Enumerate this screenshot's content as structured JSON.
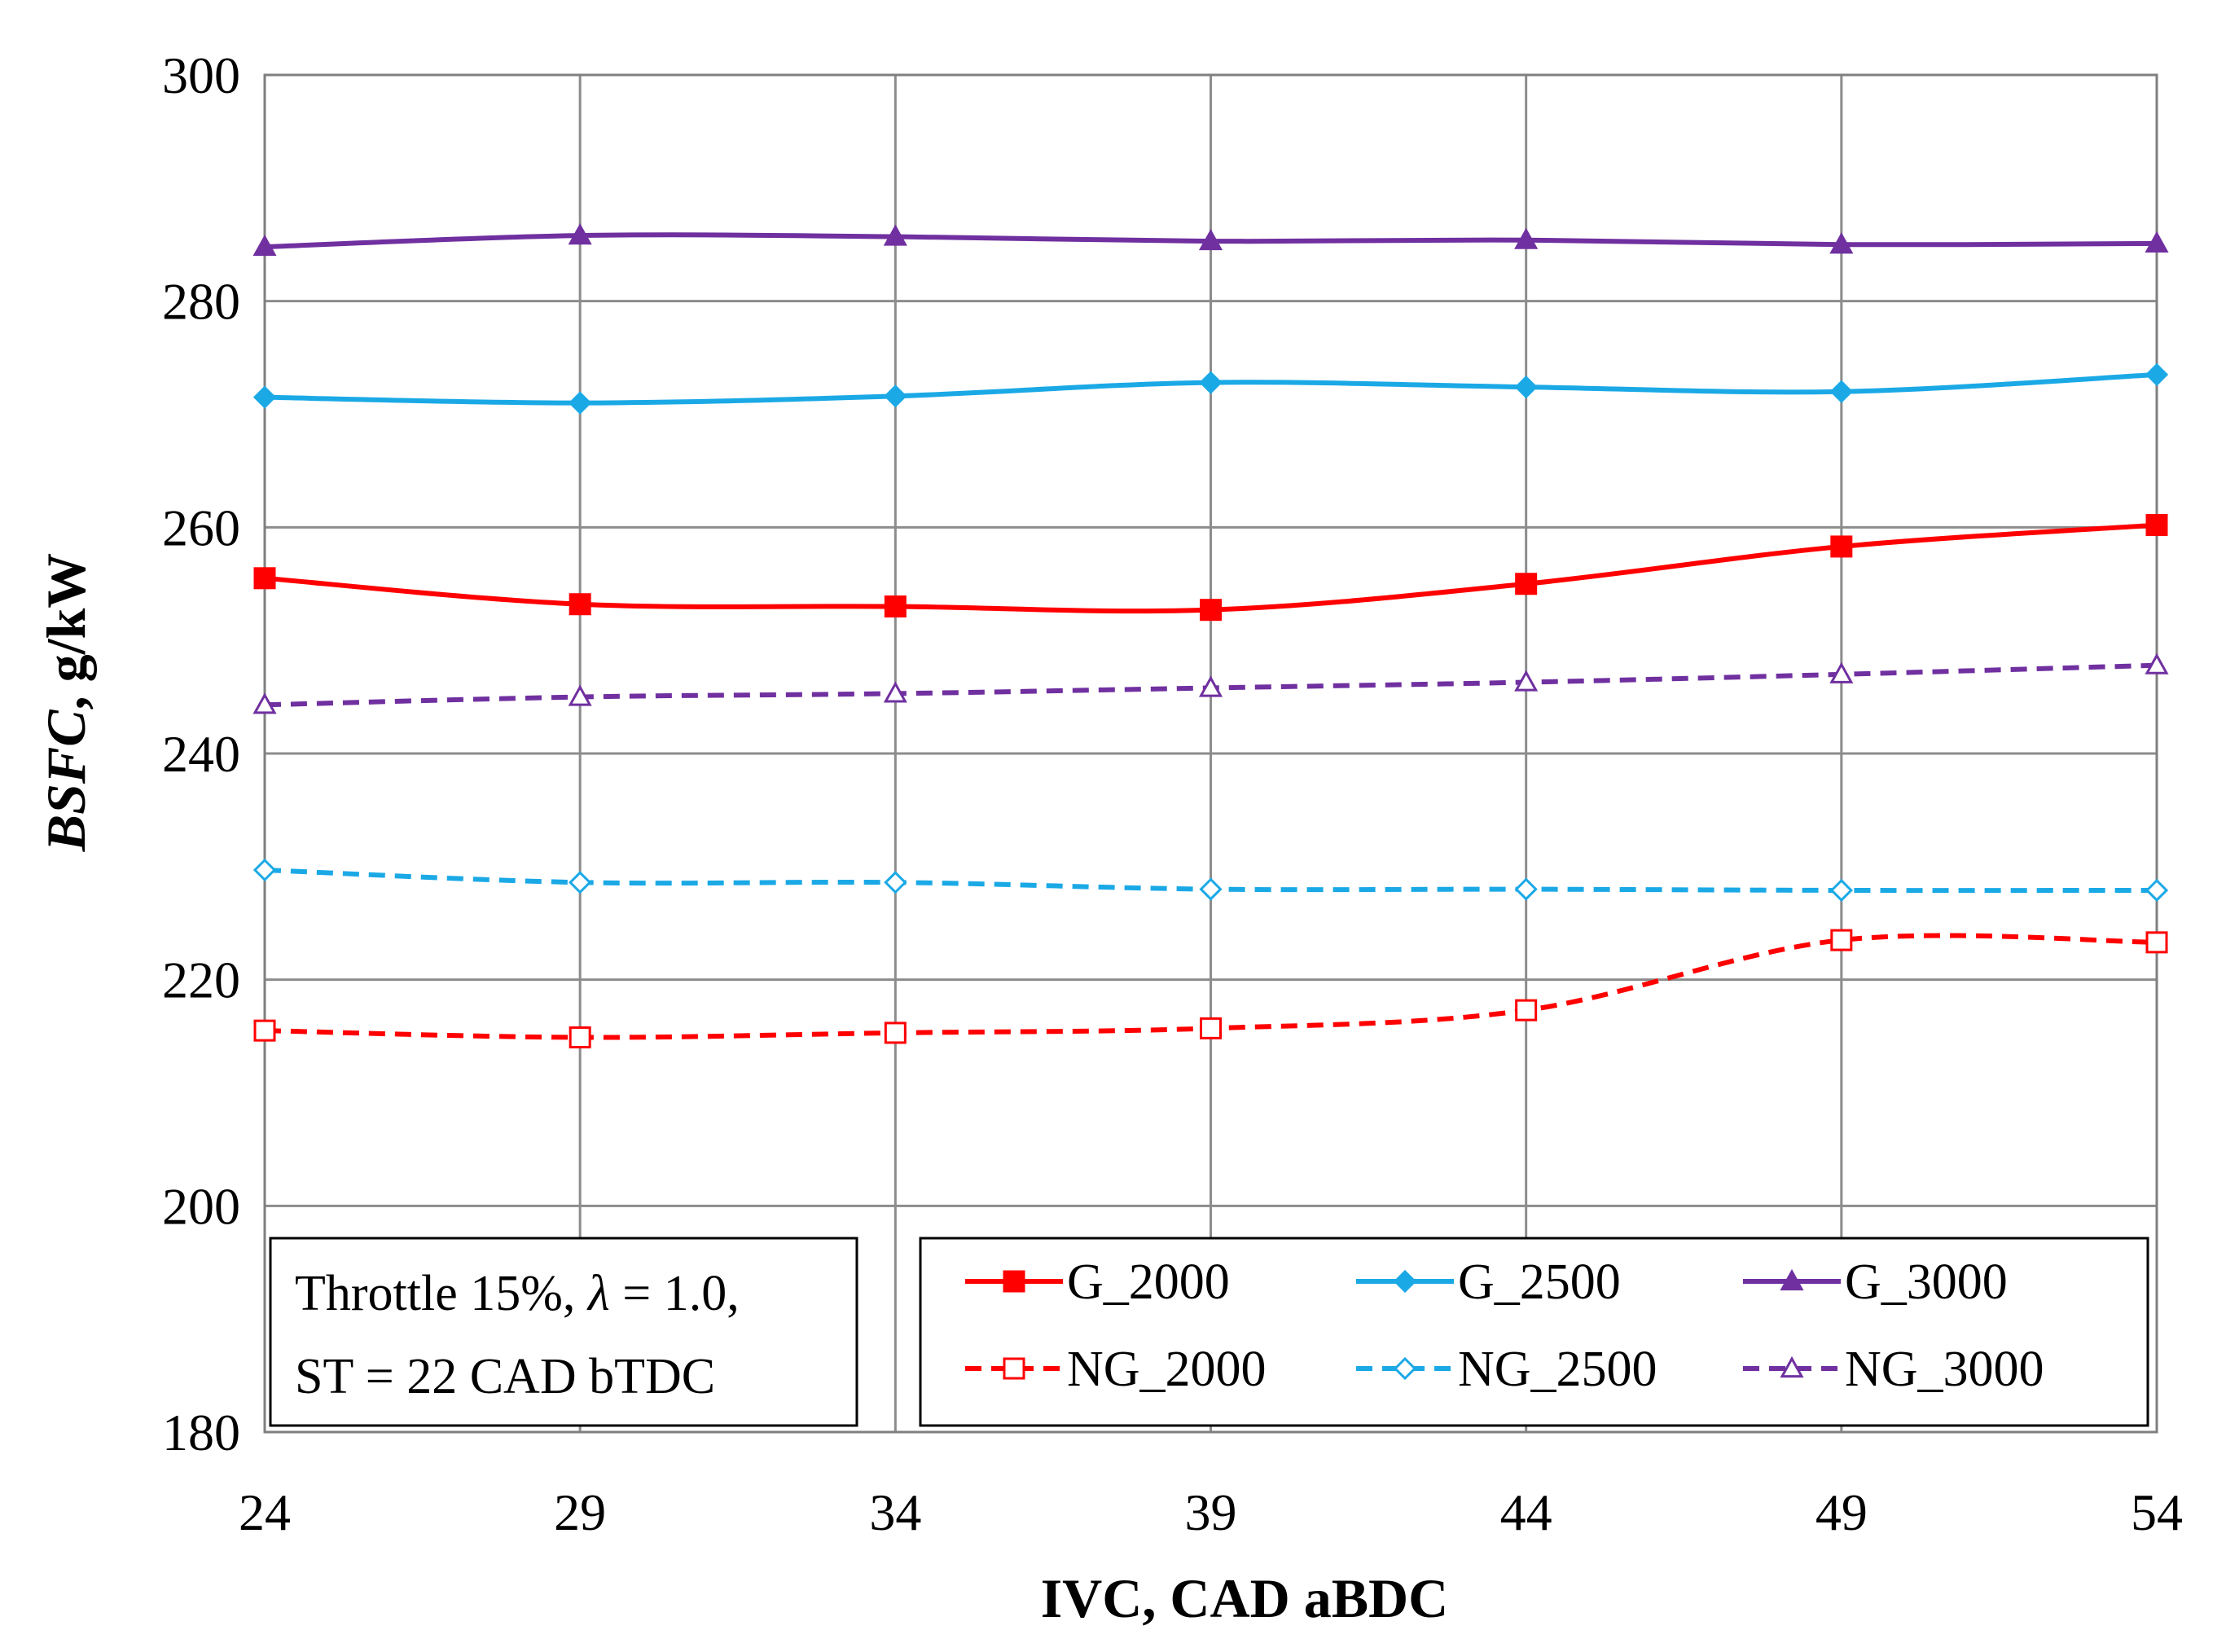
{
  "chart_data": {
    "type": "line",
    "title": "",
    "xlabel": "IVC, CAD aBDC",
    "ylabel": "BSFC, g/kW",
    "ylabel_italic_part": "BSFC",
    "ylabel_rest": ", g/kW",
    "x": [
      24,
      29,
      34,
      39,
      44,
      49,
      54
    ],
    "xlim": [
      24,
      54
    ],
    "ylim": [
      180,
      300
    ],
    "x_ticks": [
      "24",
      "29",
      "34",
      "39",
      "44",
      "49",
      "54"
    ],
    "y_ticks": [
      "180",
      "200",
      "220",
      "240",
      "260",
      "280",
      "300"
    ],
    "grid": true,
    "legend_position": "bottom-right",
    "series": [
      {
        "name": "G_2000",
        "color": "#FF0000",
        "dashed": false,
        "marker": "square",
        "values": [
          255.5,
          253.2,
          253.0,
          252.7,
          255.0,
          258.3,
          260.2
        ]
      },
      {
        "name": "G_2500",
        "color": "#1BA9E6",
        "dashed": false,
        "marker": "diamond",
        "values": [
          271.5,
          271.0,
          271.6,
          272.8,
          272.4,
          272.0,
          273.5
        ]
      },
      {
        "name": "G_3000",
        "color": "#7030A0",
        "dashed": false,
        "marker": "triangle",
        "values": [
          284.8,
          285.8,
          285.7,
          285.3,
          285.4,
          285.0,
          285.1
        ]
      },
      {
        "name": "NG_2000",
        "color": "#FF0000",
        "dashed": true,
        "marker": "square-open",
        "values": [
          215.5,
          214.9,
          215.3,
          215.7,
          217.3,
          223.5,
          223.3
        ]
      },
      {
        "name": "NG_2500",
        "color": "#1BA9E6",
        "dashed": true,
        "marker": "diamond-open",
        "values": [
          229.7,
          228.6,
          228.6,
          228.0,
          228.0,
          227.9,
          227.9
        ]
      },
      {
        "name": "NG_3000",
        "color": "#7030A0",
        "dashed": true,
        "marker": "triangle-open",
        "values": [
          244.3,
          245.0,
          245.3,
          245.8,
          246.3,
          247.0,
          247.8
        ]
      }
    ],
    "annotation": {
      "line1_prefix": "Throttle 15%,",
      "line1_symbol": "λ",
      "line1_suffix": "= 1.0,",
      "line2": "ST = 22 CAD bTDC"
    }
  }
}
